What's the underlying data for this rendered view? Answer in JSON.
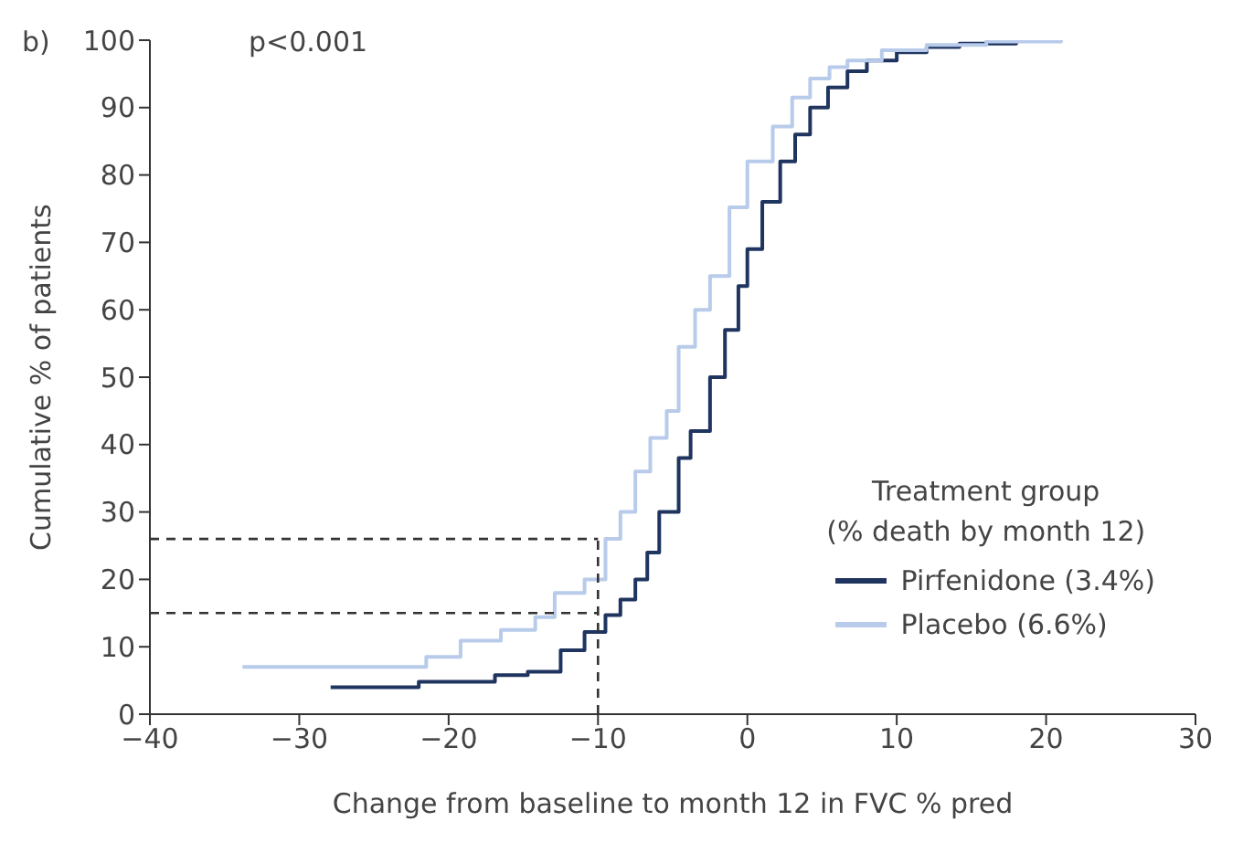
{
  "chart_data": {
    "type": "step",
    "title": "b)",
    "annotations": [
      "p<0.001"
    ],
    "xlabel": "Change from baseline to month 12 in FVC % pred",
    "ylabel": "Cumulative % of patients",
    "legend_title": "Treatment group\n(% death by month 12)",
    "legend": "bottom right",
    "xlim": [
      -40,
      30
    ],
    "xticks": [
      -40,
      -30,
      -20,
      -10,
      0,
      10,
      20,
      30
    ],
    "ylim": [
      0,
      100
    ],
    "yticks": [
      0,
      10,
      20,
      30,
      40,
      50,
      60,
      70,
      80,
      90,
      100
    ],
    "series": [
      {
        "name": "Pirfenidone (3.4%)",
        "color": "#1f3560",
        "x": [
          -27.9,
          -22,
          -16.9,
          -14.7,
          -12.5,
          -10.9,
          -9.5,
          -8.5,
          -7.5,
          -6.7,
          -5.9,
          -4.6,
          -3.8,
          -2.5,
          -1.5,
          -0.6,
          0,
          1,
          2.2,
          3.2,
          4.2,
          5.4,
          6.7,
          8,
          10,
          12,
          14.2,
          18
        ],
        "values": [
          4,
          4.8,
          5.8,
          6.3,
          9.5,
          12.2,
          14.7,
          17,
          20,
          24,
          30,
          38,
          42,
          50,
          57,
          63.5,
          69,
          76,
          82,
          86,
          90,
          93,
          95.4,
          97,
          98.2,
          99,
          99.5,
          100
        ]
      },
      {
        "name": "Placebo (6.6%)",
        "color": "#b8cbea",
        "x": [
          -33.8,
          -24.2,
          -21.5,
          -19.2,
          -16.5,
          -14.2,
          -12.9,
          -10.9,
          -9.5,
          -8.5,
          -7.5,
          -6.5,
          -5.4,
          -4.6,
          -3.5,
          -2.5,
          -1.2,
          0,
          1.7,
          3,
          4.2,
          5.5,
          6.7,
          9,
          12,
          16,
          21
        ],
        "values": [
          7,
          7,
          8.5,
          10.9,
          12.5,
          14.4,
          18,
          20,
          26,
          30,
          36,
          41,
          45,
          54.5,
          60,
          65,
          75.2,
          82,
          87.2,
          91.5,
          94.3,
          96,
          97,
          98.5,
          99.3,
          99.8,
          100
        ]
      }
    ],
    "ref_lines": [
      {
        "axis": "x",
        "value": -10,
        "color": "#333333",
        "line_style": "dashed"
      },
      {
        "axis": "y",
        "value": 15,
        "color": "#333333",
        "line_style": "dashed"
      },
      {
        "axis": "y",
        "value": 26,
        "color": "#333333",
        "line_style": "dashed"
      }
    ]
  }
}
